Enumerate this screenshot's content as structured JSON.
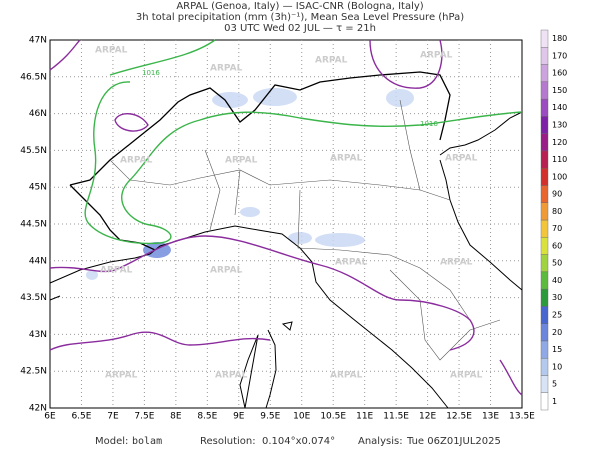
{
  "header": {
    "line1": "ARPAL (Genoa, Italy)  —  ISAC-CNR (Bologna, Italy)",
    "line2": "3h total precipitation (mm (3h)⁻¹), Mean Sea Level Pressure (hPa)",
    "line3": "03 UTC Wed 02 JUL  —  τ = 21h"
  },
  "map": {
    "x_labels": [
      "6E",
      "6.5E",
      "7E",
      "7.5E",
      "8E",
      "8.5E",
      "9E",
      "9.5E",
      "10E",
      "10.5E",
      "11E",
      "11.5E",
      "12E",
      "12.5E",
      "13E",
      "13.5E"
    ],
    "y_labels": [
      "47N",
      "46.5N",
      "46N",
      "45.5N",
      "45N",
      "44.5N",
      "44N",
      "43.5N",
      "43N",
      "42.5N",
      "42N"
    ],
    "contour_labels": [
      "1016",
      "1016"
    ],
    "watermark": "ARPAL"
  },
  "colorbar": {
    "levels": [
      1,
      5,
      10,
      15,
      20,
      25,
      30,
      40,
      50,
      60,
      70,
      80,
      90,
      100,
      110,
      120,
      130,
      140,
      150,
      160,
      170,
      180
    ],
    "colors": [
      "#ffffff",
      "#d8e4f5",
      "#b4c9ee",
      "#8fa9e6",
      "#6b86dc",
      "#4766cf",
      "#2a9a3a",
      "#5cbb3c",
      "#9fd33f",
      "#d9e23d",
      "#f2c53a",
      "#f09a35",
      "#e8652d",
      "#d4302b",
      "#b81f52",
      "#9a1c86",
      "#7d22a8",
      "#9b4cc0",
      "#b57ad0",
      "#cca3de",
      "#dfc6ea",
      "#efe2f4"
    ]
  },
  "footer": {
    "model_label": "Model:",
    "model": "bolam",
    "res_label": "Resolution:",
    "res": "0.104°x0.074°",
    "an_label": "Analysis:",
    "an": "Tue 06Z01JUL2025"
  }
}
